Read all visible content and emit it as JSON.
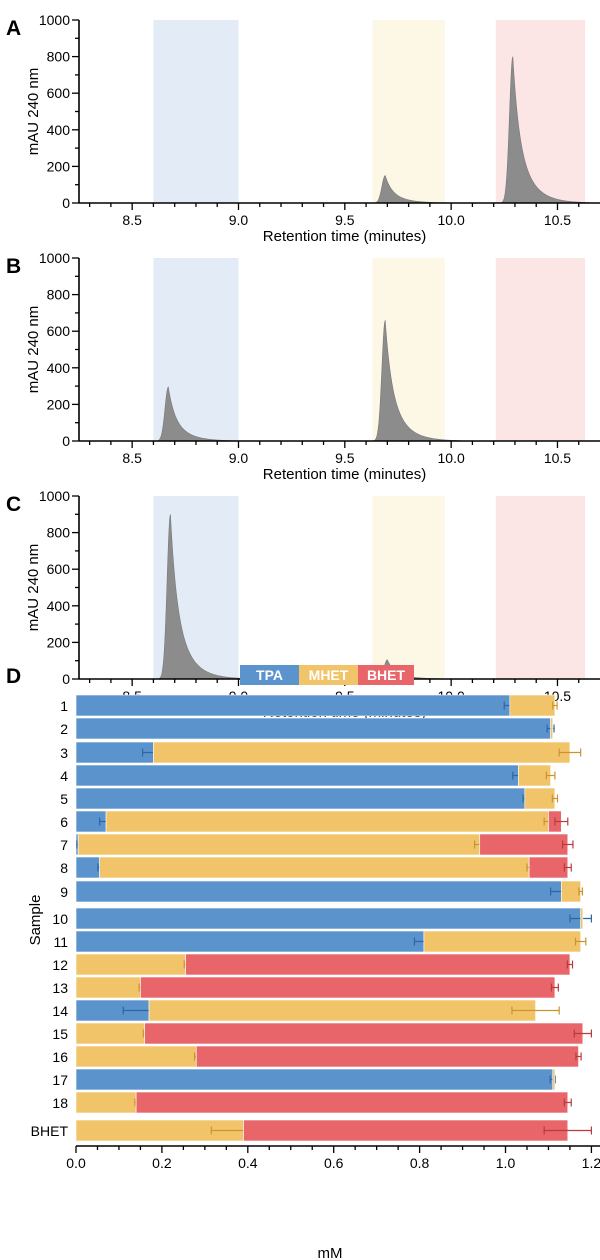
{
  "colors": {
    "tpa": "#5b93cd",
    "mhet": "#f2c46a",
    "bhet": "#e8666a",
    "peak": "#8c8c8c",
    "band_tpa": "#e3ebf6",
    "band_mhet": "#fdf7e5",
    "band_bhet": "#fbe5e5"
  },
  "chart_data": [
    {
      "type": "area",
      "panel": "A",
      "xlabel": "Retention time (minutes)",
      "ylabel": "mAU 240 nm",
      "xlim": [
        8.25,
        10.7
      ],
      "ylim": [
        0,
        1000
      ],
      "xticks": [
        "8.5",
        "9.0",
        "9.5",
        "10.0",
        "10.5"
      ],
      "yticks": [
        "0",
        "200",
        "400",
        "600",
        "800",
        "1000"
      ],
      "bands": [
        {
          "name": "TPA",
          "from": 8.6,
          "to": 9.0
        },
        {
          "name": "MHET",
          "from": 9.63,
          "to": 9.97
        },
        {
          "name": "BHET",
          "from": 10.21,
          "to": 10.63
        }
      ],
      "peaks": [
        {
          "x": 9.69,
          "height": 150
        },
        {
          "x": 10.29,
          "height": 800
        }
      ]
    },
    {
      "type": "area",
      "panel": "B",
      "xlabel": "Retention time (minutes)",
      "ylabel": "mAU 240 nm",
      "xlim": [
        8.25,
        10.7
      ],
      "ylim": [
        0,
        1000
      ],
      "xticks": [
        "8.5",
        "9.0",
        "9.5",
        "10.0",
        "10.5"
      ],
      "yticks": [
        "0",
        "200",
        "400",
        "600",
        "800",
        "1000"
      ],
      "bands": [
        {
          "name": "TPA",
          "from": 8.6,
          "to": 9.0
        },
        {
          "name": "MHET",
          "from": 9.63,
          "to": 9.97
        },
        {
          "name": "BHET",
          "from": 10.21,
          "to": 10.63
        }
      ],
      "peaks": [
        {
          "x": 8.67,
          "height": 295
        },
        {
          "x": 9.69,
          "height": 660
        }
      ]
    },
    {
      "type": "area",
      "panel": "C",
      "xlabel": "Retention time (minutes)",
      "ylabel": "mAU 240 nm",
      "xlim": [
        8.25,
        10.7
      ],
      "ylim": [
        0,
        1000
      ],
      "xticks": [
        "8.5",
        "9.0",
        "9.5",
        "10.0",
        "10.5"
      ],
      "yticks": [
        "0",
        "200",
        "400",
        "600",
        "800",
        "1000"
      ],
      "bands": [
        {
          "name": "TPA",
          "from": 8.6,
          "to": 9.0
        },
        {
          "name": "MHET",
          "from": 9.63,
          "to": 9.97
        },
        {
          "name": "BHET",
          "from": 10.21,
          "to": 10.63
        }
      ],
      "peaks": [
        {
          "x": 8.68,
          "height": 900
        },
        {
          "x": 9.7,
          "height": 105
        }
      ]
    },
    {
      "type": "bar",
      "panel": "D",
      "orientation": "horizontal",
      "stacked": true,
      "xlabel": "mM",
      "ylabel": "Sample",
      "xlim": [
        0,
        1.22
      ],
      "xticks": [
        "0.0",
        "0.2",
        "0.4",
        "0.6",
        "0.8",
        "1.0",
        "1.2"
      ],
      "legend": [
        "TPA",
        "MHET",
        "BHET"
      ],
      "legend_position": "top-center",
      "categories": [
        "1",
        "2",
        "3",
        "4",
        "5",
        "6",
        "7",
        "8",
        "9",
        "10",
        "11",
        "12",
        "13",
        "14",
        "15",
        "16",
        "17",
        "18",
        "BHET"
      ],
      "series": [
        {
          "name": "TPA",
          "values": [
            1.01,
            1.105,
            0.18,
            1.03,
            1.045,
            0.07,
            0.005,
            0.055,
            1.13,
            1.175,
            0.81,
            0,
            0,
            0.17,
            0,
            0,
            1.11,
            0,
            0
          ],
          "errors": [
            0.013,
            0.008,
            0.025,
            0.013,
            0.004,
            0.015,
            0.003,
            0.004,
            0.025,
            0.025,
            0.022,
            0,
            0,
            0.06,
            0,
            0,
            0.006,
            0,
            0
          ]
        },
        {
          "name": "MHET",
          "values": [
            0.105,
            0.005,
            0.97,
            0.075,
            0.07,
            1.03,
            0.935,
            1.0,
            0.045,
            0.005,
            0.365,
            0.255,
            0.15,
            0.9,
            0.16,
            0.28,
            0.005,
            0.14,
            0.39
          ],
          "errors": [
            0.005,
            0,
            0.025,
            0.01,
            0.006,
            0.01,
            0.012,
            0.005,
            0.004,
            0,
            0.012,
            0.003,
            0.003,
            0.055,
            0.003,
            0.004,
            0,
            0.003,
            0.075
          ]
        },
        {
          "name": "BHET",
          "values": [
            0,
            0,
            0,
            0,
            0,
            0.03,
            0.205,
            0.09,
            0,
            0,
            0,
            0.895,
            0.965,
            0,
            1.02,
            0.89,
            0,
            1.005,
            0.755
          ],
          "errors": [
            0,
            0,
            0,
            0,
            0,
            0.015,
            0.012,
            0.008,
            0,
            0,
            0,
            0.006,
            0.008,
            0,
            0.02,
            0.006,
            0,
            0.008,
            0.055
          ]
        }
      ]
    }
  ]
}
